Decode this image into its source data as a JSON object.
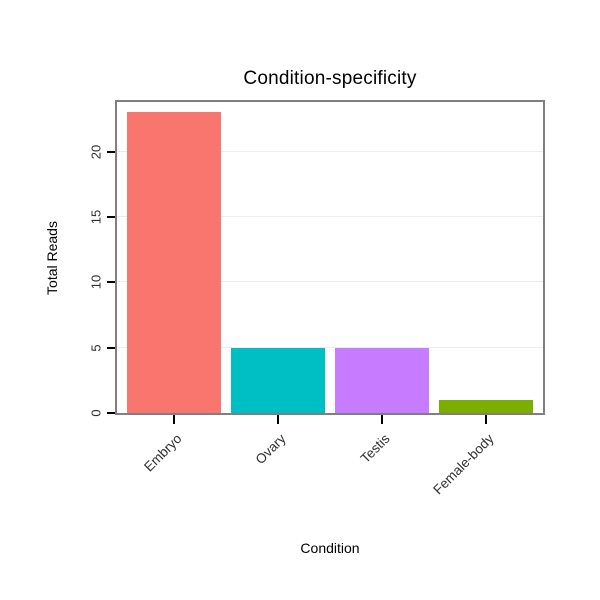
{
  "chart_data": {
    "type": "bar",
    "title": "Condition-specificity",
    "xlabel": "Condition",
    "ylabel": "Total Reads",
    "categories": [
      "Embryo",
      "Ovary",
      "Testis",
      "Female-body"
    ],
    "values": [
      23,
      5,
      5,
      1
    ],
    "bar_colors": [
      "#F8766D",
      "#00BFC4",
      "#C77CFF",
      "#7CAE00"
    ],
    "yticks": [
      0,
      5,
      10,
      15,
      20
    ],
    "ylim": [
      0,
      23.8
    ],
    "grid": true,
    "legend": "none",
    "panel_border_color": "#7F7F7F",
    "gridline_color": "#EDEDED",
    "tick_color": "#000000",
    "tick_label_color": "#303030"
  }
}
